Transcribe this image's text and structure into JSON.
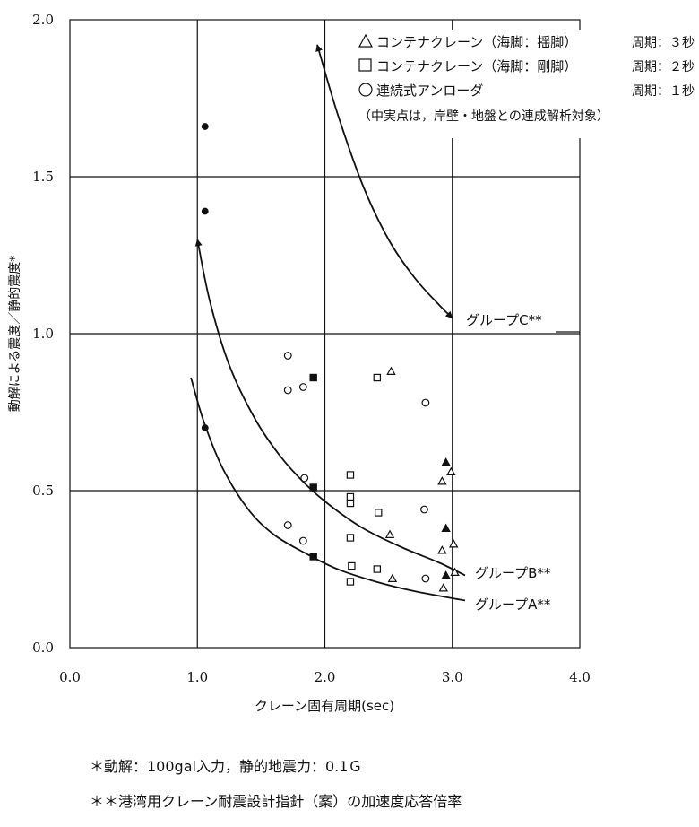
{
  "chart_data": {
    "type": "scatter",
    "title": "",
    "xlabel": "クレーン固有周期(sec)",
    "ylabel": "動解による震度／静的震度*",
    "xlim": [
      0,
      4
    ],
    "ylim": [
      0,
      2
    ],
    "grid": true,
    "xticks": [
      "0.0",
      "1.0",
      "2.0",
      "3.0",
      "4.0"
    ],
    "yticks": [
      "0.0",
      "0.5",
      "1.0",
      "1.5",
      "2.0"
    ],
    "legend": {
      "placement": "top-right",
      "entries": [
        {
          "marker": "triangle",
          "label": "コンテナクレーン（海脚：揺脚）",
          "period": "周期：３秒"
        },
        {
          "marker": "square",
          "label": "コンテナクレーン（海脚：剛脚）",
          "period": "周期：２秒"
        },
        {
          "marker": "circle",
          "label": "連続式アンローダ",
          "period": "周期：１秒"
        }
      ],
      "note": "（中実点は，岸壁・地盤との連成解析対象）"
    },
    "series": [
      {
        "marker": "triangle",
        "filled": false,
        "points": [
          [
            2.52,
            0.88
          ],
          [
            2.92,
            0.53
          ],
          [
            2.99,
            0.56
          ],
          [
            2.51,
            0.36
          ],
          [
            2.92,
            0.31
          ],
          [
            3.01,
            0.33
          ],
          [
            2.53,
            0.22
          ],
          [
            2.93,
            0.19
          ],
          [
            3.02,
            0.24
          ]
        ]
      },
      {
        "marker": "triangle",
        "filled": true,
        "points": [
          [
            2.95,
            0.59
          ],
          [
            2.95,
            0.38
          ],
          [
            2.95,
            0.23
          ]
        ]
      },
      {
        "marker": "square",
        "filled": false,
        "points": [
          [
            2.41,
            0.86
          ],
          [
            2.2,
            0.55
          ],
          [
            2.2,
            0.48
          ],
          [
            2.2,
            0.46
          ],
          [
            2.42,
            0.43
          ],
          [
            2.2,
            0.35
          ],
          [
            2.21,
            0.26
          ],
          [
            2.41,
            0.25
          ],
          [
            2.2,
            0.21
          ]
        ]
      },
      {
        "marker": "square",
        "filled": true,
        "points": [
          [
            1.91,
            0.86
          ],
          [
            1.91,
            0.51
          ],
          [
            1.91,
            0.29
          ]
        ]
      },
      {
        "marker": "circle",
        "filled": false,
        "points": [
          [
            1.71,
            0.93
          ],
          [
            1.71,
            0.82
          ],
          [
            1.83,
            0.83
          ],
          [
            2.79,
            0.78
          ],
          [
            1.84,
            0.54
          ],
          [
            1.71,
            0.39
          ],
          [
            1.83,
            0.34
          ],
          [
            2.78,
            0.44
          ],
          [
            2.79,
            0.22
          ]
        ]
      },
      {
        "marker": "circle",
        "filled": true,
        "points": [
          [
            1.06,
            1.66
          ],
          [
            1.06,
            1.39
          ],
          [
            1.06,
            0.7
          ]
        ]
      }
    ],
    "curves": [
      {
        "label": "グループC**",
        "points": [
          [
            1.94,
            1.92
          ],
          [
            2.1,
            1.7
          ],
          [
            2.3,
            1.47
          ],
          [
            2.5,
            1.3
          ],
          [
            2.7,
            1.18
          ],
          [
            2.9,
            1.09
          ],
          [
            3.0,
            1.05
          ]
        ],
        "arrow_start": true,
        "arrow_end": true
      },
      {
        "label": "グループB**",
        "points": [
          [
            1.0,
            1.3
          ],
          [
            1.1,
            1.1
          ],
          [
            1.25,
            0.9
          ],
          [
            1.45,
            0.73
          ],
          [
            1.65,
            0.61
          ],
          [
            1.85,
            0.52
          ],
          [
            2.05,
            0.45
          ],
          [
            2.3,
            0.38
          ],
          [
            2.6,
            0.32
          ],
          [
            2.9,
            0.27
          ],
          [
            3.1,
            0.23
          ]
        ],
        "arrow_start": true,
        "arrow_end": false
      },
      {
        "label": "グループA**",
        "points": [
          [
            0.95,
            0.86
          ],
          [
            1.05,
            0.72
          ],
          [
            1.2,
            0.57
          ],
          [
            1.4,
            0.44
          ],
          [
            1.6,
            0.36
          ],
          [
            1.85,
            0.3
          ],
          [
            2.1,
            0.25
          ],
          [
            2.4,
            0.21
          ],
          [
            2.7,
            0.18
          ],
          [
            3.1,
            0.15
          ]
        ],
        "arrow_start": false,
        "arrow_end": false
      }
    ]
  },
  "footnotes": {
    "note1": "＊動解：100gal入力，静的地震力：0.1Ｇ",
    "note2": "＊＊港湾用クレーン耐震設計指針（案）の加速度応答倍率"
  }
}
